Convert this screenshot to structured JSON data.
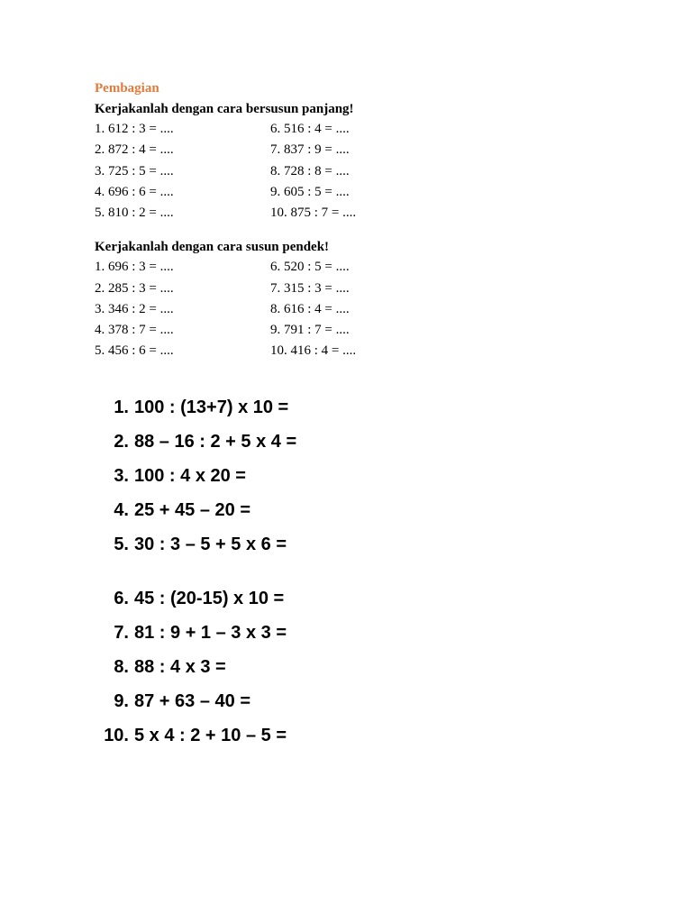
{
  "title": "Pembagian",
  "section1": {
    "instruction": "Kerjakanlah dengan cara bersusun panjang!",
    "left": [
      "1. 612 : 3 = ....",
      "2. 872 : 4 = ....",
      "3. 725 : 5 = ....",
      "4. 696 : 6 = ....",
      "5. 810 : 2 = ...."
    ],
    "right": [
      "6. 516 : 4 = ....",
      "7. 837 : 9 = ....",
      "8. 728 : 8 = ....",
      "9. 605 : 5 = ....",
      "10. 875 : 7 = ...."
    ]
  },
  "section2": {
    "instruction": "Kerjakanlah dengan cara susun pendek!",
    "left": [
      "1. 696 : 3 = ....",
      "2. 285 : 3 = ....",
      "3. 346 : 2 = ....",
      "4. 378 : 7 = ....",
      "5. 456 : 6 = ...."
    ],
    "right": [
      "6. 520 : 5 = ....",
      "7. 315 : 3 = ....",
      "8. 616 : 4 = ....",
      "9. 791 : 7 = ....",
      "10. 416 : 4 = ...."
    ]
  },
  "large_group1": [
    {
      "n": "1.",
      "e": "100 : (13+7) x 10 ="
    },
    {
      "n": "2.",
      "e": "88 – 16 : 2 + 5 x 4 ="
    },
    {
      "n": "3.",
      "e": "100 : 4 x 20 ="
    },
    {
      "n": "4.",
      "e": "25 + 45 – 20 ="
    },
    {
      "n": "5.",
      "e": "30 : 3 – 5 + 5 x 6 ="
    }
  ],
  "large_group2": [
    {
      "n": "6.",
      "e": "45 : (20-15) x 10 ="
    },
    {
      "n": "7.",
      "e": "81 : 9 + 1 – 3 x 3 ="
    },
    {
      "n": "8.",
      "e": "88 : 4 x 3 ="
    },
    {
      "n": "9.",
      "e": "87 + 63 – 40 ="
    },
    {
      "n": "10.",
      "e": "5 x 4 : 2 + 10 – 5 ="
    }
  ],
  "colors": {
    "title_color": "#e07b3c",
    "text_color": "#000000",
    "background": "#ffffff"
  },
  "typography": {
    "body_font": "Times New Roman",
    "body_size_pt": 11,
    "large_font": "Comic Sans MS",
    "large_size_pt": 16,
    "large_weight": "bold"
  }
}
